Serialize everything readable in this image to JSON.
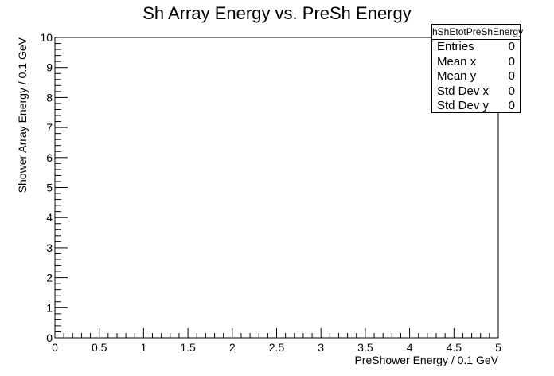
{
  "chart_data": {
    "type": "heatmap",
    "title": "Sh Array Energy vs. PreSh Energy",
    "xlabel": "PreShower Energy / 0.1 GeV",
    "ylabel": "Shower Array Energy / 0.1 GeV",
    "xlim": [
      0,
      5
    ],
    "ylim": [
      0,
      10
    ],
    "x_ticks": [
      "0",
      "0.5",
      "1",
      "1.5",
      "2",
      "2.5",
      "3",
      "3.5",
      "4",
      "4.5",
      "5"
    ],
    "y_ticks": [
      "0",
      "1",
      "2",
      "3",
      "4",
      "5",
      "6",
      "7",
      "8",
      "9",
      "10"
    ],
    "grid": false,
    "values": [],
    "stats_box": {
      "name": "hShEtotPreShEnergy",
      "rows": [
        {
          "label": "Entries",
          "value": "0"
        },
        {
          "label": "Mean x",
          "value": "0"
        },
        {
          "label": "Mean y",
          "value": "0"
        },
        {
          "label": "Std Dev x",
          "value": "0"
        },
        {
          "label": "Std Dev y",
          "value": "0"
        }
      ],
      "placement": "top-right"
    }
  }
}
